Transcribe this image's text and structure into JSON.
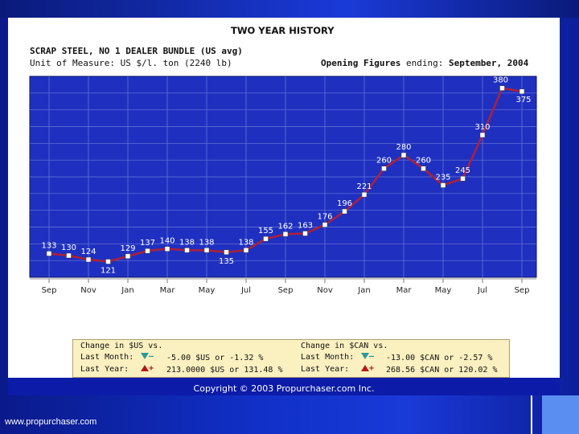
{
  "footer": {
    "site": "www.propurchaser.com",
    "copyright": "Copyright © 2003 Propurchaser.com Inc."
  },
  "header": {
    "title": "TWO YEAR HISTORY",
    "product": "SCRAP STEEL, NO 1 DEALER BUNDLE (US avg)",
    "unit": "Unit of Measure: US $/l. ton (2240 lb)",
    "opening_label": "Opening Figures",
    "opening_mid": "ending:",
    "opening_date": "September, 2004"
  },
  "legend": {
    "us_heading": "Change in $US vs.",
    "can_heading": "Change in $CAN vs.",
    "last_month_label": "Last Month:",
    "last_year_label": "Last Year:",
    "minus_sign": "–",
    "plus_sign": "+",
    "us_last_month": "-5.00 $US or -1.32 %",
    "us_last_year": "213.0000 $US or 131.48 %",
    "can_last_month": "-13.00 $CAN or -2.57 %",
    "can_last_year": "268.56 $CAN or 120.02 %"
  },
  "colors": {
    "plot_bg": "#1f30c0",
    "line": "#b02038",
    "grid": "#6a7ad8",
    "marker": "#ffffff",
    "down": "#2a9a9a",
    "up": "#b01818"
  },
  "chart_data": {
    "type": "line",
    "title": "TWO YEAR HISTORY",
    "xlabel": "",
    "ylabel": "",
    "ylim": [
      100,
      400
    ],
    "grid": true,
    "tick_labels": [
      "Sep",
      "Nov",
      "Jan",
      "Mar",
      "May",
      "Jul",
      "Sep",
      "Nov",
      "Jan",
      "Mar",
      "May",
      "Jul",
      "Sep"
    ],
    "series": [
      {
        "name": "SCRAP STEEL, NO 1 DEALER BUNDLE (US avg)",
        "values": [
          133,
          130,
          124,
          121,
          129,
          137,
          140,
          138,
          138,
          135,
          138,
          155,
          162,
          163,
          176,
          196,
          221,
          260,
          280,
          260,
          235,
          245,
          310,
          380,
          375
        ]
      }
    ]
  }
}
